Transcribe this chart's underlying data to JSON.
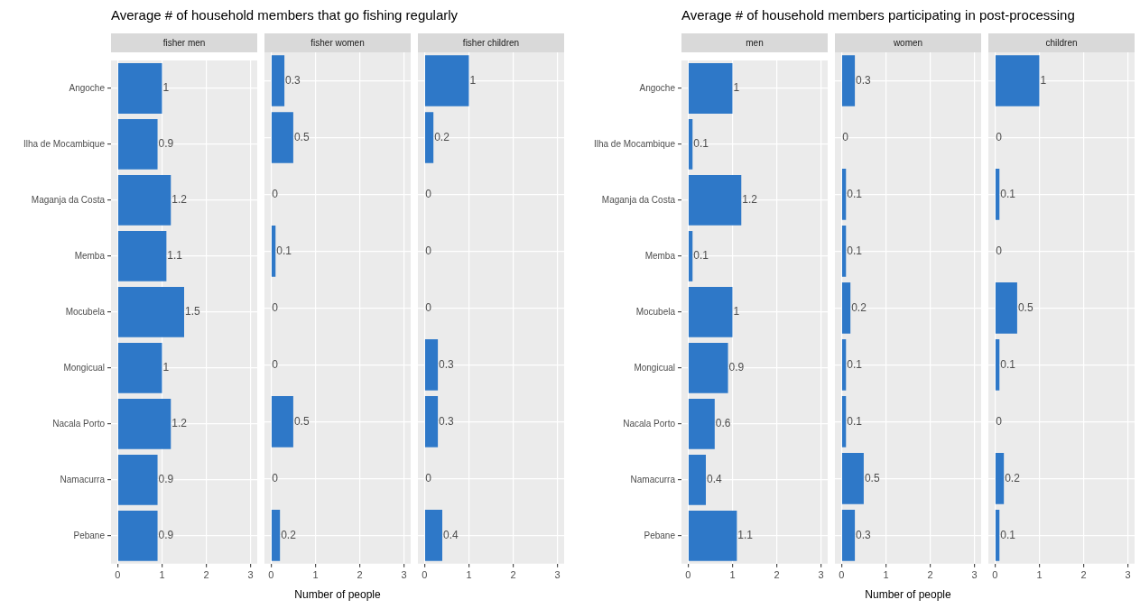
{
  "chart_data": [
    {
      "type": "bar",
      "orientation": "horizontal",
      "title": "Average # of household members that go fishing regularly",
      "subtitle": "fisher men",
      "categories": [
        "Angoche",
        "Ilha de Mocambique",
        "Maganja da Costa",
        "Memba",
        "Mocubela",
        "Mongicual",
        "Nacala Porto",
        "Namacurra",
        "Pebane"
      ],
      "values": [
        1,
        0.9,
        1.2,
        1.1,
        1.5,
        1,
        1.2,
        0.9,
        0.9
      ],
      "color": "#2e78c8",
      "xlim": [
        -0.15,
        3.15
      ],
      "xticks": [
        0,
        1,
        2,
        3
      ],
      "grid": true,
      "data_labels": true
    },
    {
      "type": "bar",
      "orientation": "horizontal",
      "subtitle": "fisher women",
      "xlabel": "Number of people",
      "categories": [
        null,
        null,
        null,
        null,
        null,
        null,
        null,
        null,
        null
      ],
      "values": [
        0.3,
        0.5,
        0,
        0.1,
        0,
        0,
        0.5,
        0,
        0.2
      ],
      "color": "#2e78c8",
      "xlim": [
        -0.15,
        3.15
      ],
      "xticks": [
        0,
        1,
        2,
        3
      ],
      "grid": true,
      "data_labels": true,
      "tick_labels": "x"
    },
    {
      "type": "bar",
      "orientation": "horizontal",
      "subtitle": "fisher children",
      "categories": [
        null,
        null,
        null,
        null,
        null,
        null,
        null,
        null,
        null
      ],
      "values": [
        1,
        0.2,
        0,
        0,
        0,
        0.3,
        0.3,
        0,
        0.4
      ],
      "color": "#2e78c8",
      "xlim": [
        -0.15,
        3.15
      ],
      "xticks": [
        0,
        1,
        2,
        3
      ],
      "grid": true,
      "data_labels": true,
      "tick_labels": "x"
    },
    {
      "type": "bar",
      "orientation": "horizontal",
      "title": "Average # of household members participating in post-processing",
      "subtitle": "men",
      "categories": [
        "Angoche",
        "Ilha de Mocambique",
        "Maganja da Costa",
        "Memba",
        "Mocubela",
        "Mongicual",
        "Nacala Porto",
        "Namacurra",
        "Pebane"
      ],
      "values": [
        1,
        0.1,
        1.2,
        0.1,
        1,
        0.9,
        0.6,
        0.4,
        1.1
      ],
      "color": "#2e78c8",
      "xlim": [
        -0.15,
        3.15
      ],
      "xticks": [
        0,
        1,
        2,
        3
      ],
      "grid": true,
      "data_labels": true
    },
    {
      "type": "bar",
      "orientation": "horizontal",
      "subtitle": "women",
      "xlabel": "Number of people",
      "categories": [
        null,
        null,
        null,
        null,
        null,
        null,
        null,
        null,
        null
      ],
      "values": [
        0.3,
        0,
        0.1,
        0.1,
        0.2,
        0.1,
        0.1,
        0.5,
        0.3
      ],
      "color": "#2e78c8",
      "xlim": [
        -0.15,
        3.15
      ],
      "xticks": [
        0,
        1,
        2,
        3
      ],
      "grid": true,
      "data_labels": true,
      "tick_labels": "x"
    },
    {
      "type": "bar",
      "orientation": "horizontal",
      "subtitle": "children",
      "categories": [
        null,
        null,
        null,
        null,
        null,
        null,
        null,
        null,
        null
      ],
      "values": [
        1,
        0,
        0.1,
        0,
        0.5,
        0.1,
        0,
        0.2,
        0.1
      ],
      "color": "#2e78c8",
      "xlim": [
        -0.15,
        3.15
      ],
      "xticks": [
        0,
        1,
        2,
        3
      ],
      "grid": true,
      "data_labels": true,
      "tick_labels": "x"
    }
  ]
}
